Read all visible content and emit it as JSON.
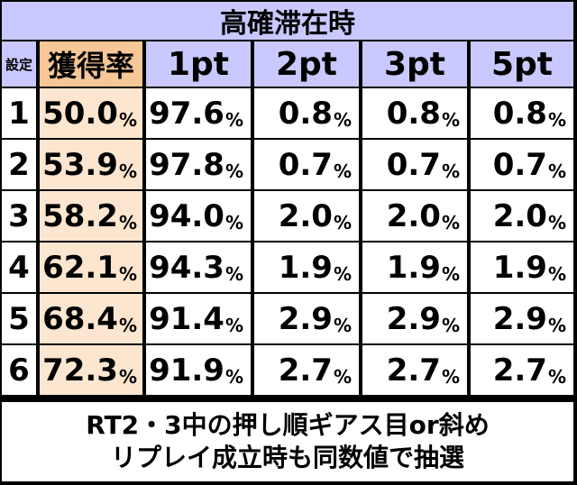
{
  "title": "高確滞在時",
  "header": {
    "setting_label": "設定",
    "rate_label": "獲得率",
    "columns": [
      "1pt",
      "2pt",
      "3pt",
      "5pt"
    ]
  },
  "percent_sign": "%",
  "rows": [
    {
      "setting": "1",
      "rate": "50.0",
      "values": [
        "97.6",
        "0.8",
        "0.8",
        "0.8"
      ]
    },
    {
      "setting": "2",
      "rate": "53.9",
      "values": [
        "97.8",
        "0.7",
        "0.7",
        "0.7"
      ]
    },
    {
      "setting": "3",
      "rate": "58.2",
      "values": [
        "94.0",
        "2.0",
        "2.0",
        "2.0"
      ]
    },
    {
      "setting": "4",
      "rate": "62.1",
      "values": [
        "94.3",
        "1.9",
        "1.9",
        "1.9"
      ]
    },
    {
      "setting": "5",
      "rate": "68.4",
      "values": [
        "91.4",
        "2.9",
        "2.9",
        "2.9"
      ]
    },
    {
      "setting": "6",
      "rate": "72.3",
      "values": [
        "91.9",
        "2.7",
        "2.7",
        "2.7"
      ]
    }
  ],
  "note": {
    "line1": "RT2・3中の押し順ギアス目or斜め",
    "line2": "リプレイ成立時も同数値で抽選"
  },
  "colors": {
    "header_bg": "#c9c9ff",
    "rate_header_bg": "#f6c797",
    "rate_cell_bg": "#fde6cf"
  }
}
